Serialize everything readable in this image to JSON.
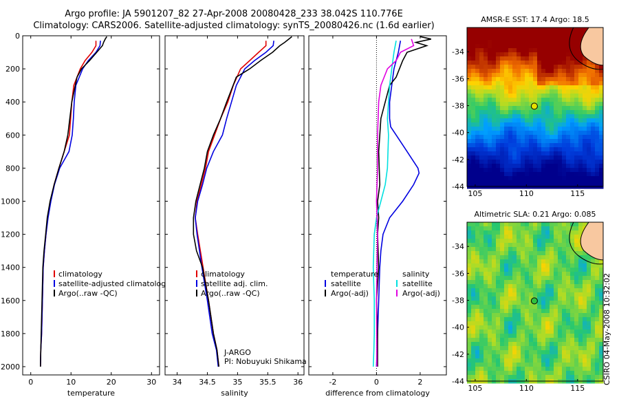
{
  "title": {
    "line1": "Argo profile: JA 5901207_82 27-Apr-2008 20080428_233 38.042S 110.776E",
    "line2": "Climatology: CARS2006. Satellite-adjusted climatology: synTS_20080426.nc (1.6d earlier)"
  },
  "footer": "CSIRO 04-May-2008 10:32:02",
  "chart_data": [
    {
      "type": "line",
      "xlabel": "temperature",
      "xlim": [
        -2,
        32
      ],
      "ylim": [
        2050,
        0
      ],
      "xticks": [
        0,
        10,
        20,
        30
      ],
      "yticks": [
        0,
        200,
        400,
        600,
        800,
        1000,
        1200,
        1400,
        1600,
        1800,
        2000
      ],
      "legend": [
        "climatology",
        "satellite-adjusted climatology",
        "Argo(..raw -QC)"
      ],
      "legend_position": "lower-right",
      "series": [
        {
          "name": "climatology",
          "color": "#e00000",
          "x": [
            16.2,
            16.2,
            15.2,
            13.5,
            12.3,
            10.7,
            10.2,
            9.9,
            9.6,
            8.3,
            7.0,
            5.8,
            4.9,
            4.2,
            3.8,
            3.4,
            3.1,
            2.9,
            2.7,
            2.5,
            2.4
          ],
          "y": [
            30,
            60,
            100,
            150,
            200,
            300,
            400,
            500,
            600,
            700,
            800,
            900,
            1000,
            1100,
            1200,
            1300,
            1400,
            1600,
            1800,
            1900,
            2000
          ]
        },
        {
          "name": "satellite-adjusted climatology",
          "color": "#0000e0",
          "x": [
            17.3,
            17.2,
            16.2,
            14.3,
            12.9,
            11.2,
            10.8,
            10.6,
            10.3,
            9.5,
            7.2,
            5.9,
            5.0,
            4.3,
            3.8,
            3.4,
            3.1,
            2.9,
            2.7,
            2.5,
            2.4
          ],
          "y": [
            30,
            60,
            100,
            150,
            200,
            300,
            400,
            500,
            600,
            700,
            800,
            900,
            1000,
            1100,
            1200,
            1300,
            1400,
            1600,
            1800,
            1900,
            2000
          ]
        },
        {
          "name": "Argo(..raw -QC)",
          "color": "#000000",
          "x": [
            18.9,
            18.5,
            18.1,
            17.8,
            16.4,
            14.6,
            12.6,
            11.5,
            10.2,
            9.7,
            9.2,
            8.3,
            7.0,
            5.8,
            4.8,
            4.1,
            3.7,
            3.3,
            3.0,
            2.8,
            2.6,
            2.5,
            2.4
          ],
          "y": [
            5,
            20,
            40,
            60,
            100,
            150,
            200,
            250,
            400,
            500,
            600,
            700,
            800,
            900,
            1000,
            1100,
            1200,
            1300,
            1400,
            1600,
            1800,
            1900,
            2000
          ]
        }
      ]
    },
    {
      "type": "line",
      "xlabel": "salinity",
      "xlim": [
        33.8,
        36.1
      ],
      "ylim": [
        2050,
        0
      ],
      "xticks": [
        34,
        34.5,
        35,
        35.5,
        36
      ],
      "legend": [
        "climatology",
        "satellite adj. clim.",
        "Argo(..raw -QC)"
      ],
      "legend_position": "lower-right",
      "annotation": [
        "J-ARGO",
        "PI: Nobuyuki Shikama"
      ],
      "series": [
        {
          "name": "climatology",
          "color": "#e00000",
          "x": [
            35.47,
            35.47,
            35.35,
            35.2,
            35.05,
            34.93,
            34.84,
            34.72,
            34.62,
            34.52,
            34.47,
            34.4,
            34.33,
            34.3,
            34.34,
            34.43,
            34.52,
            34.6,
            34.66,
            34.69
          ],
          "y": [
            30,
            60,
            100,
            150,
            200,
            300,
            400,
            500,
            600,
            700,
            800,
            900,
            1000,
            1100,
            1200,
            1400,
            1600,
            1800,
            1900,
            2000
          ]
        },
        {
          "name": "satellite adj. clim.",
          "color": "#0000e0",
          "x": [
            35.6,
            35.59,
            35.47,
            35.28,
            35.12,
            34.98,
            34.9,
            34.82,
            34.75,
            34.6,
            34.49,
            34.42,
            34.34,
            34.3,
            34.33,
            34.41,
            34.5,
            34.58,
            34.65,
            34.68
          ],
          "y": [
            30,
            60,
            100,
            150,
            200,
            300,
            400,
            500,
            600,
            700,
            800,
            900,
            1000,
            1100,
            1200,
            1400,
            1600,
            1800,
            1900,
            2000
          ]
        },
        {
          "name": "Argo(..raw -QC)",
          "color": "#000000",
          "x": [
            35.9,
            35.85,
            35.78,
            35.7,
            35.58,
            35.38,
            35.2,
            34.98,
            34.82,
            34.72,
            34.6,
            34.5,
            34.45,
            34.38,
            34.31,
            34.27,
            34.27,
            34.32,
            34.42,
            34.52,
            34.6,
            34.66,
            34.69
          ],
          "y": [
            5,
            20,
            40,
            60,
            100,
            150,
            200,
            250,
            400,
            500,
            600,
            700,
            800,
            900,
            1000,
            1100,
            1200,
            1300,
            1400,
            1600,
            1800,
            1900,
            2000
          ]
        }
      ]
    },
    {
      "type": "line",
      "xlabel": "difference from climatology",
      "xlim": [
        -3.1,
        3.2
      ],
      "ylim": [
        2050,
        0
      ],
      "xticks": [
        -2,
        0,
        2
      ],
      "legend_columns": [
        {
          "header": "temperature",
          "items": [
            "satellite",
            "Argo(-adj)"
          ]
        },
        {
          "header": "salinity",
          "items": [
            "satellite",
            "Argo(-adj)"
          ]
        }
      ],
      "legend_position": "lower-right",
      "series": [
        {
          "name": "temperature satellite",
          "color": "#0000e0",
          "x": [
            1.1,
            1.0,
            0.8,
            0.7,
            0.6,
            0.6,
            0.65,
            0.9,
            1.4,
            1.9,
            1.95,
            1.7,
            1.2,
            0.6,
            0.3,
            0.2,
            0.15,
            0.1,
            0.05,
            0.0
          ],
          "y": [
            30,
            100,
            200,
            300,
            400,
            500,
            550,
            600,
            700,
            800,
            830,
            900,
            1000,
            1100,
            1200,
            1300,
            1400,
            1600,
            1800,
            2000
          ]
        },
        {
          "name": "temperature Argo(-adj)",
          "color": "#000000",
          "x": [
            2.0,
            2.5,
            1.8,
            2.3,
            1.4,
            1.2,
            0.9,
            0.6,
            0.4,
            0.2,
            0.1,
            0.15,
            0.05,
            0.1,
            0.05,
            0.1,
            0.0,
            0.05,
            0.05,
            0.05
          ],
          "y": [
            5,
            20,
            40,
            60,
            100,
            150,
            250,
            300,
            400,
            500,
            700,
            900,
            1000,
            1100,
            1200,
            1400,
            1600,
            1800,
            1900,
            2000
          ]
        },
        {
          "name": "salinity satellite",
          "color": "#00e0e0",
          "x": [
            0.9,
            0.8,
            0.7,
            0.6,
            0.55,
            0.5,
            0.55,
            0.5,
            0.4,
            0.2,
            0.0,
            -0.1,
            -0.15,
            -0.1,
            -0.1,
            -0.12,
            -0.15
          ],
          "y": [
            30,
            100,
            200,
            300,
            400,
            500,
            600,
            800,
            900,
            1000,
            1100,
            1200,
            1400,
            1600,
            1800,
            1900,
            2000
          ]
        },
        {
          "name": "salinity Argo(-adj)",
          "color": "#e000e0",
          "x": [
            1.6,
            1.7,
            1.1,
            0.9,
            0.5,
            0.2,
            0.1,
            0.05,
            0.05,
            0.0,
            0.05,
            0.0,
            0.02
          ],
          "y": [
            20,
            60,
            100,
            150,
            200,
            300,
            400,
            600,
            800,
            1000,
            1200,
            1600,
            2000
          ]
        }
      ]
    },
    {
      "type": "heatmap",
      "title": "AMSR-E SST: 17.4 Argo: 18.5",
      "xlim": [
        104.2,
        117.5
      ],
      "ylim": [
        -44,
        -32.2
      ],
      "xticks": [
        105,
        110,
        115
      ],
      "yticks": [
        -34,
        -36,
        -38,
        -40,
        -42,
        -44
      ],
      "marker": {
        "lon": 110.776,
        "lat": -38.042
      }
    },
    {
      "type": "heatmap",
      "title": "Altimetric SLA: 0.21 Argo: 0.085",
      "xlim": [
        104.2,
        117.5
      ],
      "ylim": [
        -44,
        -32.2
      ],
      "xticks": [
        105,
        110,
        115
      ],
      "yticks": [
        -34,
        -36,
        -38,
        -40,
        -42,
        -44
      ],
      "marker": {
        "lon": 110.776,
        "lat": -38.042
      }
    }
  ]
}
